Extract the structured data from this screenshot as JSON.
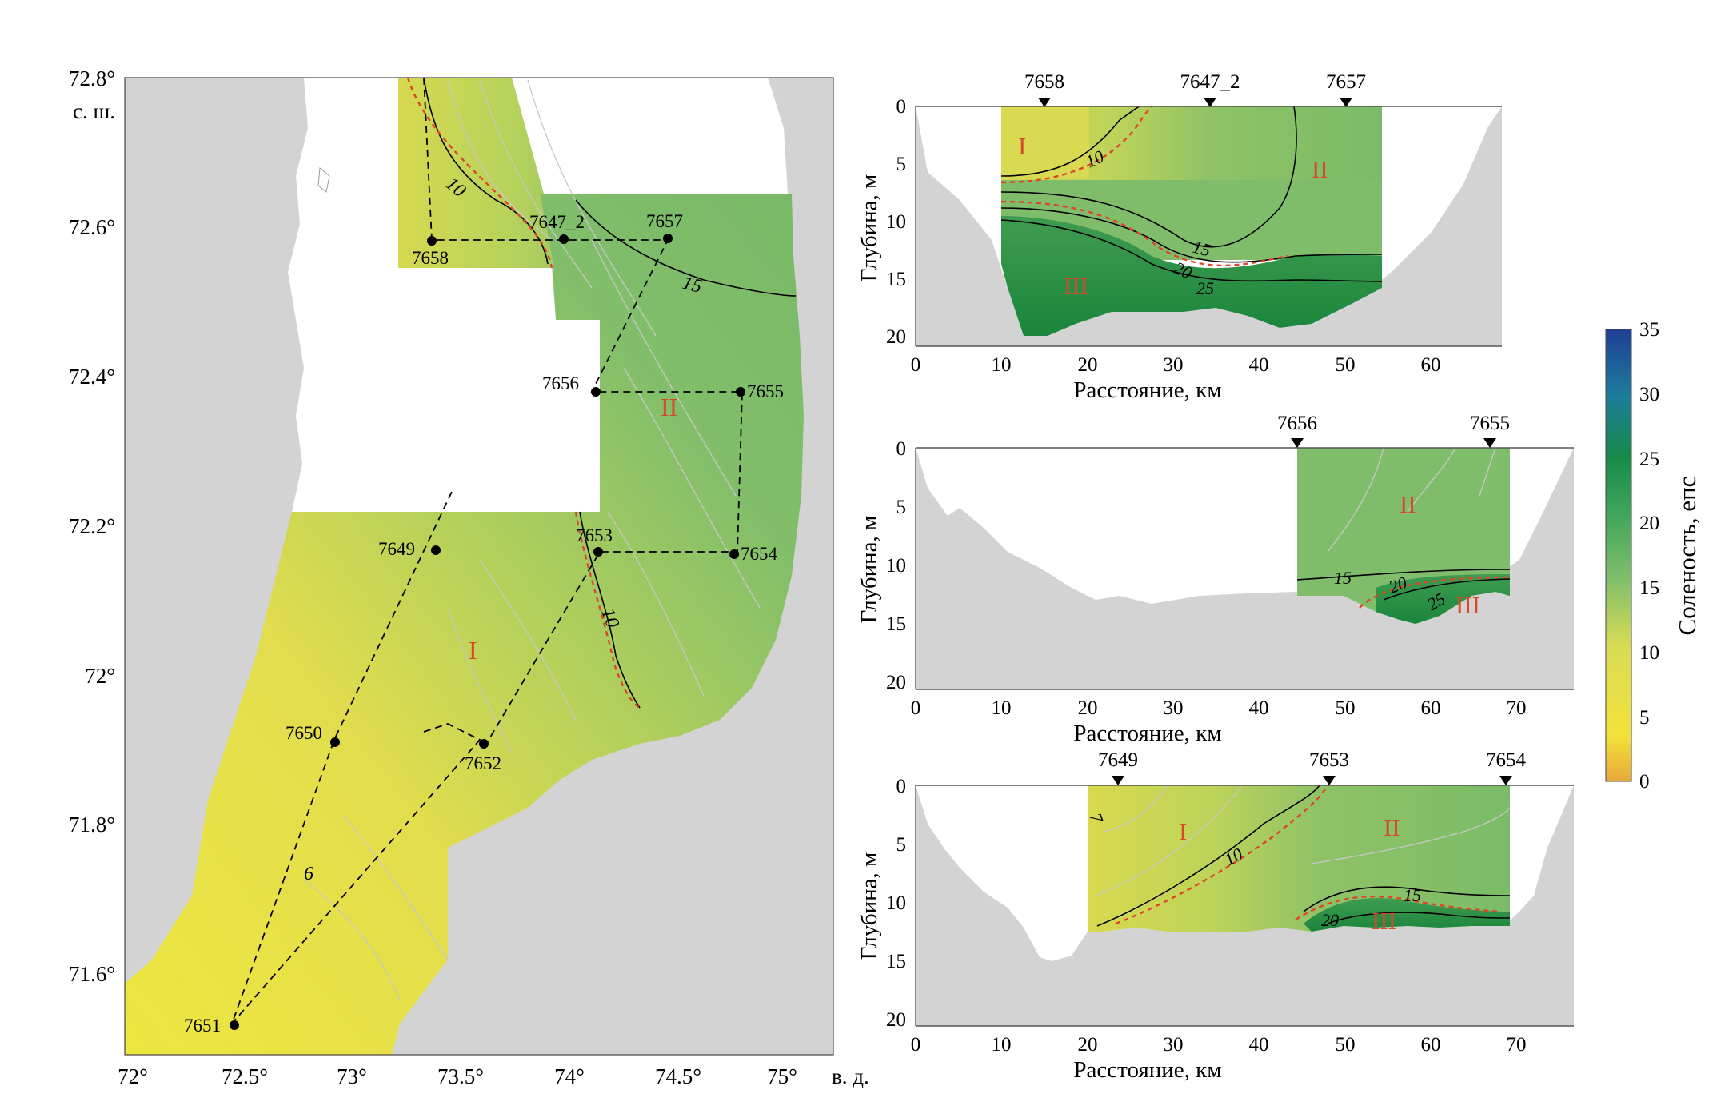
{
  "map": {
    "lat_ticks": [
      "72.8°",
      "72.6°",
      "72.4°",
      "72.2°",
      "72°",
      "71.8°",
      "71.6°"
    ],
    "lat_unit": "с. ш.",
    "lon_ticks": [
      "72°",
      "72.5°",
      "73°",
      "73.5°",
      "74°",
      "74.5°",
      "75°"
    ],
    "lon_unit": "в. д.",
    "stations": [
      "7658",
      "7647_2",
      "7657",
      "7656",
      "7655",
      "7653",
      "7654",
      "7649",
      "7650",
      "7652",
      "7651"
    ],
    "isoline_labels": [
      "10",
      "15",
      "10",
      "6"
    ],
    "zones": [
      "I",
      "II"
    ]
  },
  "sections": [
    {
      "stations": [
        "7658",
        "7647_2",
        "7657"
      ],
      "x_ticks": [
        "0",
        "10",
        "20",
        "30",
        "40",
        "50",
        "60"
      ],
      "y_ticks": [
        "0",
        "5",
        "10",
        "15",
        "20"
      ],
      "xlabel": "Расстояние, км",
      "ylabel": "Глубина, м",
      "isolines": [
        "10",
        "15",
        "20",
        "25"
      ],
      "zones": [
        "I",
        "II",
        "III"
      ]
    },
    {
      "stations": [
        "7656",
        "7655"
      ],
      "x_ticks": [
        "0",
        "10",
        "20",
        "30",
        "40",
        "50",
        "60",
        "70"
      ],
      "y_ticks": [
        "0",
        "5",
        "10",
        "15",
        "20"
      ],
      "xlabel": "Расстояние, км",
      "ylabel": "Глубина, м",
      "isolines": [
        "15",
        "20",
        "25"
      ],
      "zones": [
        "II",
        "III"
      ]
    },
    {
      "stations": [
        "7649",
        "7653",
        "7654"
      ],
      "x_ticks": [
        "0",
        "10",
        "20",
        "30",
        "40",
        "50",
        "60",
        "70"
      ],
      "y_ticks": [
        "0",
        "5",
        "10",
        "15",
        "20"
      ],
      "xlabel": "Расстояние, км",
      "ylabel": "Глубина, м",
      "isolines": [
        "7",
        "10",
        "15",
        "20"
      ],
      "zones": [
        "I",
        "II",
        "III"
      ]
    }
  ],
  "colorbar": {
    "label": "Соленость, епс",
    "ticks": [
      "35",
      "30",
      "25",
      "20",
      "15",
      "10",
      "5",
      "0"
    ]
  },
  "colors": {
    "land": "#d3d3d3",
    "low_salinity": "#e9e24a",
    "mid_salinity": "#7fbd6c",
    "high_salinity": "#1f8a3f",
    "front_line": "#e0452a"
  }
}
